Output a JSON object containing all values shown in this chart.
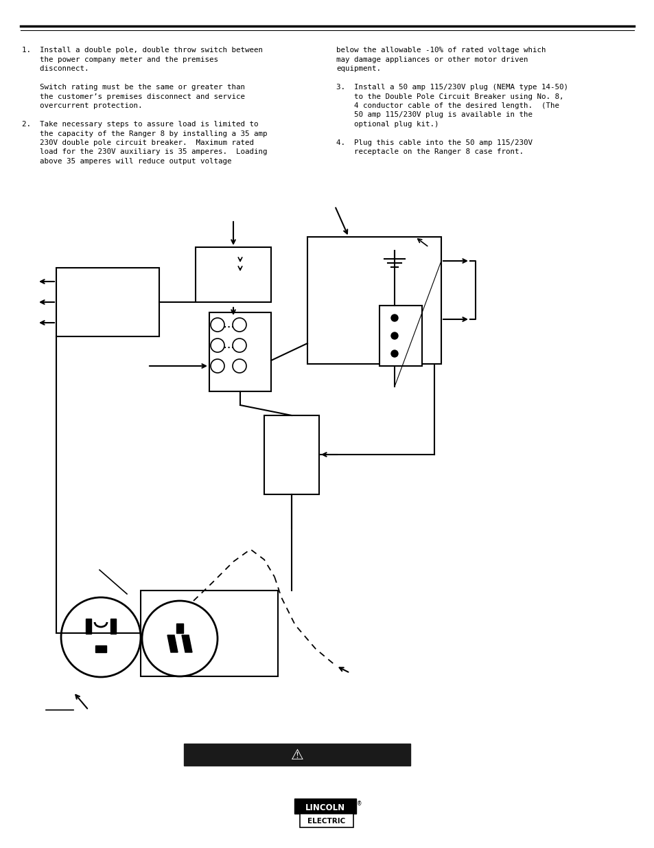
{
  "bg_color": "#ffffff",
  "text_color": "#000000",
  "para1_text": [
    "1.  Install a double pole, double throw switch between",
    "    the power company meter and the premises",
    "    disconnect.",
    "",
    "    Switch rating must be the same or greater than",
    "    the customer’s premises disconnect and service",
    "    overcurrent protection.",
    "",
    "2.  Take necessary steps to assure load is limited to",
    "    the capacity of the Ranger 8 by installing a 35 amp",
    "    230V double pole circuit breaker.  Maximum rated",
    "    load for the 230V auxiliary is 35 amperes.  Loading",
    "    above 35 amperes will reduce output voltage"
  ],
  "para2_text": [
    "below the allowable -10% of rated voltage which",
    "may damage appliances or other motor driven",
    "equipment.",
    "",
    "3.  Install a 50 amp 115/230V plug (NEMA type 14-50)",
    "    to the Double Pole Circuit Breaker using No. 8,",
    "    4 conductor cable of the desired length.  (The",
    "    50 amp 115/230V plug is available in the",
    "    optional plug kit.)",
    "",
    "4.  Plug this cable into the 50 amp 115/230V",
    "    receptacle on the Ranger 8 case front."
  ],
  "warning_bar_color": "#1a1a1a",
  "lincoln_text_top": "LINCOLN",
  "lincoln_text_bot": "ELECTRIC"
}
